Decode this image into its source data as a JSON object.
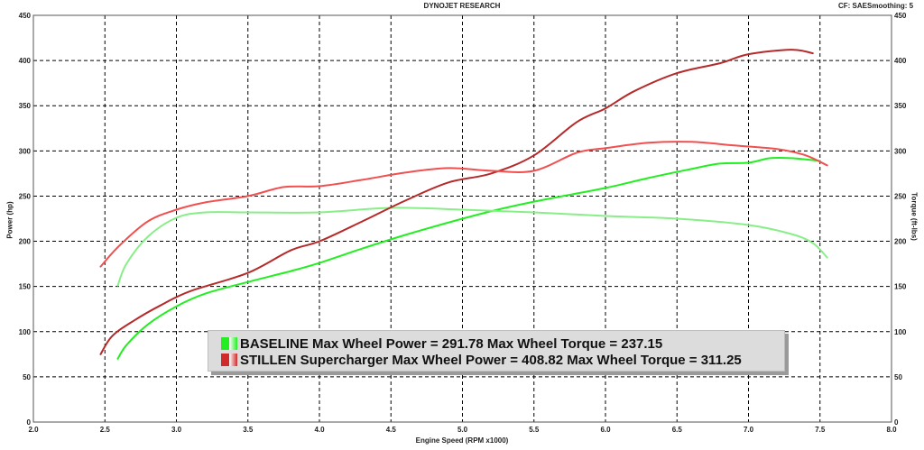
{
  "header": {
    "title": "DYNOJET RESEARCH",
    "cf": "CF: SAE",
    "smoothing": "Smoothing: 5"
  },
  "colors": {
    "baseline": "#22ee22",
    "baseline_torque": "#88ee88",
    "stillen": "#b52a2a",
    "stillen_torque": "#f05050",
    "grid": "#000000"
  },
  "legend": [
    {
      "text": "BASELINE Max Wheel Power = 291.78 Max Wheel Torque = 237.15",
      "color": "#22ee22"
    },
    {
      "text": "STILLEN Supercharger Max Wheel Power = 408.82 Max Wheel Torque = 311.25",
      "color": "#d02a2a"
    }
  ],
  "chart_data": {
    "type": "line",
    "title": "DYNOJET RESEARCH",
    "xlabel": "Engine Speed (RPM x1000)",
    "ylabel": "Power (hp)",
    "y2label": "Torque (ft-lbs)",
    "xlim": [
      2.0,
      8.0
    ],
    "ylim": [
      0,
      450
    ],
    "y2lim": [
      0,
      450
    ],
    "xticks": [
      "2.0",
      "2.5",
      "3.0",
      "3.5",
      "4.0",
      "4.5",
      "5.0",
      "5.5",
      "6.0",
      "6.5",
      "7.0",
      "7.5",
      "8.0"
    ],
    "yticks": [
      "0",
      "50",
      "100",
      "150",
      "200",
      "250",
      "300",
      "350",
      "400",
      "450"
    ],
    "grid": true,
    "series": [
      {
        "key": "baseline_power",
        "color": "#22ee22",
        "x": [
          2.59,
          2.65,
          2.8,
          3.0,
          3.2,
          3.5,
          3.8,
          4.0,
          4.3,
          4.6,
          5.0,
          5.3,
          5.6,
          6.0,
          6.3,
          6.6,
          6.8,
          7.0,
          7.15,
          7.3,
          7.5
        ],
        "y": [
          70,
          85,
          108,
          128,
          142,
          155,
          167,
          176,
          192,
          207,
          225,
          237,
          247,
          259,
          270,
          280,
          286,
          287,
          292,
          292,
          289
        ]
      },
      {
        "key": "baseline_torque",
        "color": "#88ee88",
        "x": [
          2.59,
          2.65,
          2.8,
          3.0,
          3.2,
          3.5,
          4.0,
          4.5,
          5.0,
          5.5,
          6.0,
          6.5,
          7.0,
          7.3,
          7.45,
          7.55
        ],
        "y": [
          151,
          175,
          205,
          226,
          232,
          232,
          232,
          237,
          235,
          232,
          228,
          225,
          218,
          208,
          198,
          182
        ]
      },
      {
        "key": "stillen_power",
        "color": "#b52a2a",
        "x": [
          2.47,
          2.55,
          2.7,
          2.9,
          3.1,
          3.5,
          3.8,
          4.0,
          4.3,
          4.6,
          4.9,
          5.2,
          5.5,
          5.8,
          6.0,
          6.2,
          6.5,
          6.8,
          7.0,
          7.3,
          7.45
        ],
        "y": [
          75,
          95,
          112,
          130,
          145,
          165,
          190,
          200,
          222,
          245,
          265,
          275,
          295,
          332,
          347,
          366,
          386,
          397,
          407,
          412,
          408
        ]
      },
      {
        "key": "stillen_torque",
        "color": "#f05050",
        "x": [
          2.47,
          2.6,
          2.8,
          3.0,
          3.2,
          3.5,
          3.75,
          4.0,
          4.3,
          4.6,
          4.9,
          5.2,
          5.5,
          5.8,
          6.0,
          6.3,
          6.6,
          6.9,
          7.2,
          7.4,
          7.55
        ],
        "y": [
          172,
          195,
          222,
          235,
          243,
          250,
          260,
          261,
          268,
          276,
          281,
          278,
          278,
          298,
          303,
          309,
          310,
          306,
          302,
          295,
          284
        ]
      }
    ]
  }
}
